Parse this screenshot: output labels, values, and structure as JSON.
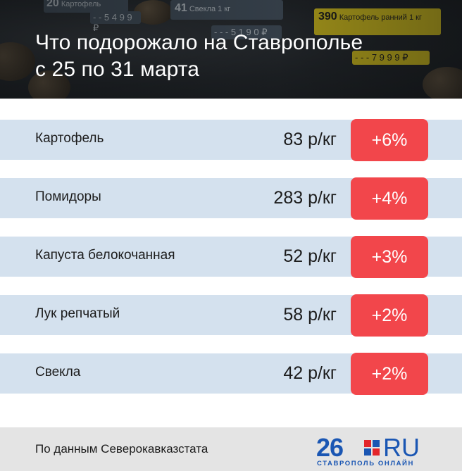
{
  "header": {
    "title_line1": "Что подорожало на Ставрополье",
    "title_line2": "с 25 по 31 марта",
    "photo_tags": {
      "tag1_number": "20",
      "tag1_name": "Картофель",
      "tag1_price": "- - 5 4 9 9 ₽",
      "tag2_number": "41",
      "tag2_name": "Свекла 1 кг",
      "tag2_price": "- - - 5 1 9 0 ₽",
      "tag3_number": "390",
      "tag3_name": "Картофель ранний 1 кг",
      "tag3_price": "- - - 7 9 9 9 ₽"
    }
  },
  "rows": [
    {
      "name": "Картофель",
      "price": "83 р/кг",
      "change": "+6%"
    },
    {
      "name": "Помидоры",
      "price": "283 р/кг",
      "change": "+4%"
    },
    {
      "name": "Капуста белокочанная",
      "price": "52 р/кг",
      "change": "+3%"
    },
    {
      "name": "Лук репчатый",
      "price": "58 р/кг",
      "change": "+2%"
    },
    {
      "name": "Свекла",
      "price": "42 р/кг",
      "change": "+2%"
    }
  ],
  "footer": {
    "source": "По данным Северокавказстата",
    "logo_number": "26",
    "logo_domain": "RU",
    "logo_subtitle": "СТАВРОПОЛЬ ОНЛАЙН"
  },
  "colors": {
    "row_background": "#d4e1ee",
    "badge_red": "#f2464b",
    "footer_background": "#e4e4e4",
    "logo_blue": "#1a56b3",
    "logo_red": "#e3262b"
  }
}
